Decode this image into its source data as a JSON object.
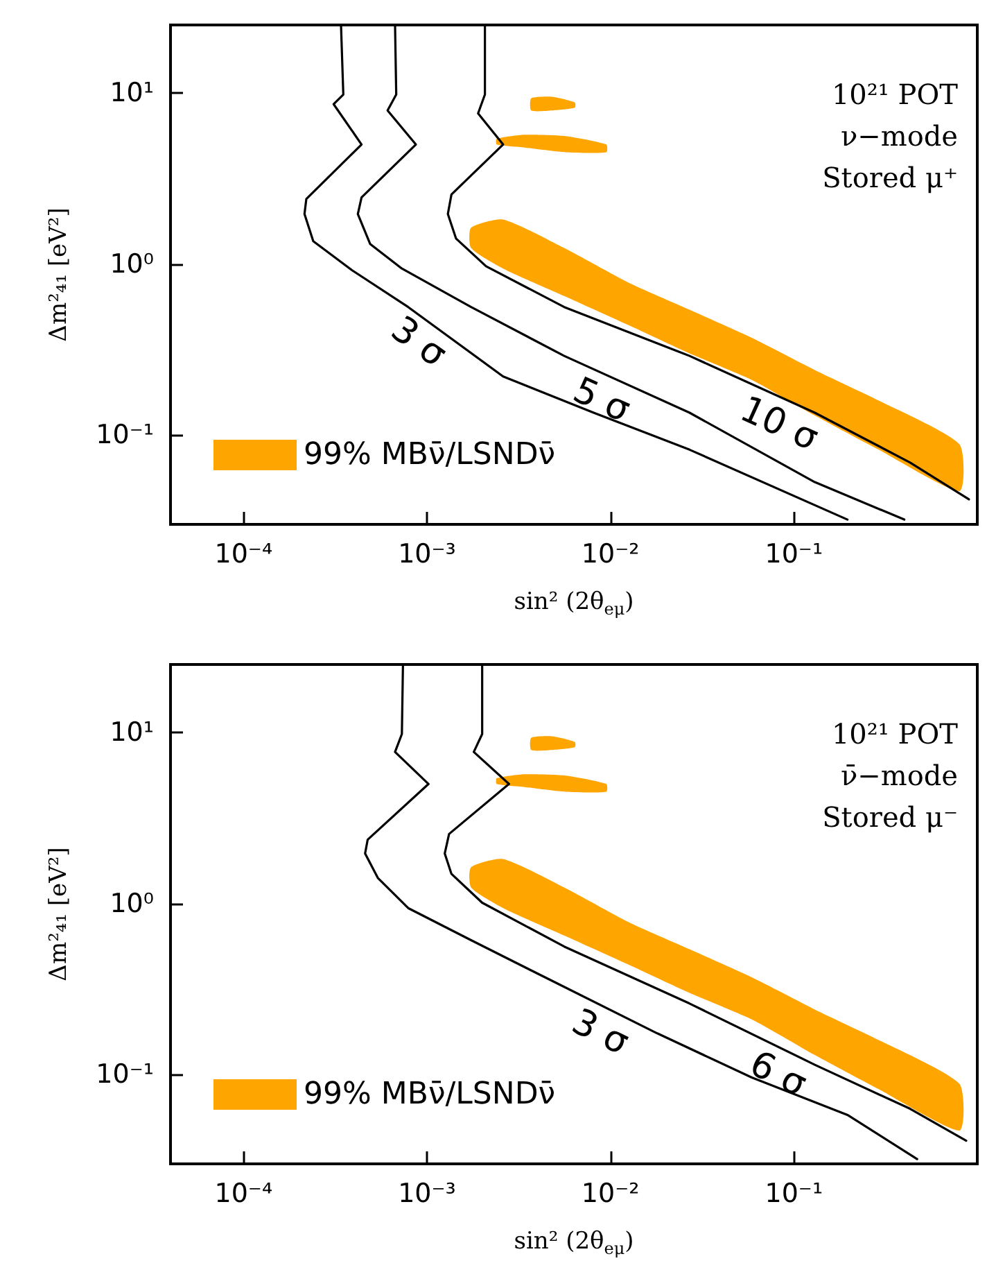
{
  "chart_data": [
    {
      "type": "line",
      "xlabel": "sin² (2θ$_{eμ}$)",
      "ylabel": "Δm²₄₁ [eV²]",
      "log": "xy",
      "xlim": [
        4e-05,
        1
      ],
      "ylim": [
        0.03,
        25
      ],
      "xticks": [
        {
          "value": 0.0001,
          "label": "10⁻⁴"
        },
        {
          "value": 0.001,
          "label": "10⁻³"
        },
        {
          "value": 0.01,
          "label": "10⁻²"
        },
        {
          "value": 0.1,
          "label": "10⁻¹"
        }
      ],
      "yticks": [
        {
          "value": 0.1,
          "label": "10⁻¹"
        },
        {
          "value": 1,
          "label": "10⁰"
        },
        {
          "value": 10,
          "label": "10¹"
        }
      ],
      "legend": "bottom left",
      "annotations": [
        "10²¹ POT",
        "ν−mode",
        "Stored μ⁺"
      ],
      "series": [
        {
          "name": "3 σ",
          "color": "#000000",
          "x": [
            0.00034,
            0.00035,
            0.00031,
            0.00044,
            0.00022,
            0.000215,
            0.00024,
            0.00039,
            0.00079,
            0.0026,
            0.0081,
            0.027,
            0.196
          ],
          "values": [
            25,
            9.8,
            8.6,
            5.0,
            2.4,
            1.96,
            1.36,
            0.92,
            0.56,
            0.22,
            0.135,
            0.082,
            0.032
          ]
        },
        {
          "name": "5 σ",
          "color": "#000000",
          "x": [
            0.00067,
            0.00068,
            0.00061,
            0.00087,
            0.00044,
            0.00042,
            0.00049,
            0.00073,
            0.00174,
            0.0056,
            0.027,
            0.13,
            0.4
          ],
          "values": [
            25,
            9.8,
            7.9,
            5.0,
            2.45,
            1.96,
            1.31,
            0.94,
            0.56,
            0.29,
            0.135,
            0.053,
            0.032
          ]
        },
        {
          "name": "10 σ",
          "color": "#000000",
          "x": [
            0.00207,
            0.00207,
            0.0019,
            0.0026,
            0.00136,
            0.0013,
            0.00144,
            0.0021,
            0.0056,
            0.027,
            0.13,
            0.43,
            0.9
          ],
          "values": [
            25,
            9.8,
            7.6,
            5.0,
            2.55,
            1.96,
            1.41,
            0.97,
            0.56,
            0.29,
            0.135,
            0.069,
            0.042
          ]
        },
        {
          "type": "area",
          "name": "99% MBν̄/LSNDν̄",
          "color": "#ffa500",
          "x": [
            0.00174,
            0.0026,
            0.0056,
            0.0125,
            0.027,
            0.059,
            0.13,
            0.29,
            0.8,
            0.8,
            0.29,
            0.13,
            0.059,
            0.027,
            0.0125,
            0.0056,
            0.0026,
            0.00174
          ],
          "values": [
            1.63,
            1.82,
            1.24,
            0.78,
            0.54,
            0.37,
            0.24,
            0.159,
            0.088,
            0.047,
            0.082,
            0.13,
            0.21,
            0.3,
            0.44,
            0.65,
            0.94,
            1.24
          ]
        },
        {
          "type": "area",
          "color": "#ffa500",
          "x": [
            0.0037,
            0.0048,
            0.0064,
            0.0064,
            0.0048,
            0.0037
          ],
          "values": [
            9.3,
            9.5,
            8.8,
            8.2,
            7.9,
            7.9
          ]
        },
        {
          "type": "area",
          "color": "#ffa500",
          "x": [
            0.0024,
            0.0034,
            0.0057,
            0.0095,
            0.0095,
            0.0057,
            0.0034,
            0.0024
          ],
          "values": [
            5.4,
            5.7,
            5.6,
            5.0,
            4.5,
            4.5,
            4.8,
            5.0
          ]
        }
      ]
    },
    {
      "type": "line",
      "xlabel": "sin² (2θ$_{eμ}$)",
      "ylabel": "Δm²₄₁ [eV²]",
      "log": "xy",
      "xlim": [
        4e-05,
        1
      ],
      "ylim": [
        0.03,
        25
      ],
      "xticks": [
        {
          "value": 0.0001,
          "label": "10⁻⁴"
        },
        {
          "value": 0.001,
          "label": "10⁻³"
        },
        {
          "value": 0.01,
          "label": "10⁻²"
        },
        {
          "value": 0.1,
          "label": "10⁻¹"
        }
      ],
      "yticks": [
        {
          "value": 0.1,
          "label": "10⁻¹"
        },
        {
          "value": 1,
          "label": "10⁰"
        },
        {
          "value": 10,
          "label": "10¹"
        }
      ],
      "legend": "bottom left",
      "annotations": [
        "10²¹ POT",
        "ν̄−mode",
        "Stored μ⁻"
      ],
      "series": [
        {
          "name": "3 σ",
          "color": "#000000",
          "x": [
            0.00074,
            0.00073,
            0.00067,
            0.00102,
            0.000475,
            0.00046,
            0.00054,
            0.00079,
            0.00174,
            0.0044,
            0.018,
            0.059,
            0.196,
            0.47
          ],
          "values": [
            25,
            9.8,
            7.7,
            5.0,
            2.36,
            1.96,
            1.41,
            0.94,
            0.61,
            0.37,
            0.174,
            0.096,
            0.058,
            0.032
          ]
        },
        {
          "name": "6 σ",
          "color": "#000000",
          "x": [
            0.002,
            0.002,
            0.0018,
            0.0028,
            0.00132,
            0.00125,
            0.00136,
            0.002,
            0.0056,
            0.027,
            0.13,
            0.43,
            0.87
          ],
          "values": [
            25,
            9.8,
            7.7,
            5.0,
            2.55,
            1.96,
            1.49,
            1.01,
            0.56,
            0.26,
            0.114,
            0.063,
            0.041
          ]
        },
        {
          "type": "area",
          "name": "99% MBν̄/LSNDν̄",
          "color": "#ffa500",
          "x": [
            0.00174,
            0.0026,
            0.0056,
            0.0125,
            0.027,
            0.059,
            0.13,
            0.29,
            0.8,
            0.8,
            0.29,
            0.13,
            0.059,
            0.027,
            0.0125,
            0.0056,
            0.0026,
            0.00174
          ],
          "values": [
            1.63,
            1.82,
            1.24,
            0.78,
            0.54,
            0.37,
            0.24,
            0.159,
            0.088,
            0.047,
            0.082,
            0.13,
            0.21,
            0.3,
            0.44,
            0.65,
            0.94,
            1.24
          ]
        },
        {
          "type": "area",
          "color": "#ffa500",
          "x": [
            0.0037,
            0.0048,
            0.0064,
            0.0064,
            0.0048,
            0.0037
          ],
          "values": [
            9.3,
            9.5,
            8.8,
            8.2,
            7.9,
            7.9
          ]
        },
        {
          "type": "area",
          "color": "#ffa500",
          "x": [
            0.0024,
            0.0034,
            0.0057,
            0.0095,
            0.0095,
            0.0057,
            0.0034,
            0.0024
          ],
          "values": [
            5.4,
            5.7,
            5.6,
            5.0,
            4.5,
            4.5,
            4.8,
            5.0
          ]
        }
      ]
    }
  ]
}
